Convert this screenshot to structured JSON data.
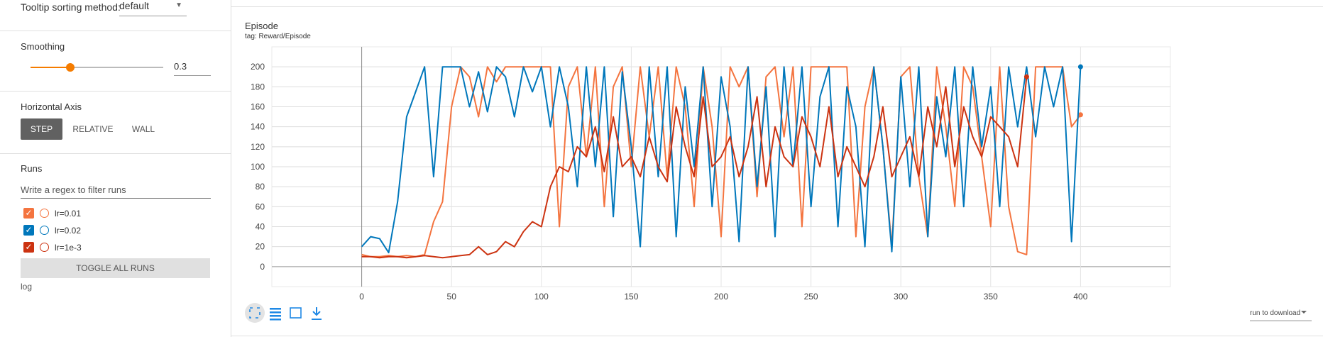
{
  "sidebar": {
    "tooltip_label": "Tooltip sorting method:",
    "tooltip_value": "default",
    "smoothing_label": "Smoothing",
    "smoothing": 0.3,
    "axis_label": "Horizontal Axis",
    "axis_buttons": [
      "STEP",
      "RELATIVE",
      "WALL"
    ],
    "runs_label": "Runs",
    "filter_placeholder": "Write a regex to filter runs",
    "toggle_button": "TOGGLE ALL RUNS",
    "log_dir": "log"
  },
  "card": {
    "download_label": "run to download"
  },
  "chart_data": {
    "type": "line",
    "title": "Episode",
    "subtitle": "tag: Reward/Episode",
    "x": [
      0,
      5,
      10,
      15,
      20,
      25,
      30,
      35,
      40,
      45,
      50,
      55,
      60,
      65,
      70,
      75,
      80,
      85,
      90,
      95,
      100,
      105,
      110,
      115,
      120,
      125,
      130,
      135,
      140,
      145,
      150,
      155,
      160,
      165,
      170,
      175,
      180,
      185,
      190,
      195,
      200,
      205,
      210,
      215,
      220,
      225,
      230,
      235,
      240,
      245,
      250,
      255,
      260,
      265,
      270,
      275,
      280,
      285,
      290,
      295,
      300,
      305,
      310,
      315,
      320,
      325,
      330,
      335,
      340,
      345,
      350,
      355,
      360,
      365,
      370,
      375,
      380,
      385,
      390,
      395,
      400
    ],
    "series": [
      {
        "name": "lr=0.01",
        "color": "#f4743f",
        "values": [
          12,
          10,
          10,
          11,
          10,
          11,
          10,
          12,
          45,
          65,
          160,
          200,
          190,
          150,
          200,
          185,
          200,
          200,
          200,
          200,
          200,
          200,
          40,
          180,
          200,
          110,
          200,
          60,
          180,
          200,
          100,
          200,
          130,
          200,
          90,
          200,
          160,
          60,
          200,
          140,
          30,
          200,
          180,
          200,
          70,
          190,
          200,
          130,
          200,
          40,
          200,
          200,
          200,
          200,
          200,
          30,
          160,
          200,
          120,
          20,
          190,
          200,
          90,
          30,
          200,
          140,
          60,
          200,
          180,
          110,
          40,
          200,
          60,
          15,
          12,
          200,
          200,
          200,
          200,
          140,
          152
        ]
      },
      {
        "name": "lr=0.02",
        "color": "#0077bb",
        "values": [
          20,
          30,
          28,
          14,
          65,
          150,
          175,
          200,
          90,
          200,
          200,
          200,
          160,
          195,
          155,
          200,
          190,
          150,
          200,
          175,
          200,
          140,
          200,
          160,
          80,
          200,
          100,
          200,
          50,
          195,
          120,
          20,
          200,
          90,
          200,
          30,
          180,
          100,
          200,
          60,
          190,
          140,
          25,
          200,
          80,
          180,
          30,
          200,
          100,
          200,
          60,
          170,
          200,
          40,
          180,
          140,
          20,
          200,
          120,
          15,
          190,
          80,
          200,
          30,
          170,
          110,
          200,
          60,
          200,
          120,
          180,
          60,
          200,
          140,
          200,
          130,
          200,
          160,
          200,
          25,
          200
        ]
      },
      {
        "name": "lr=1e-3",
        "color": "#cc3311",
        "values": [
          10,
          10,
          9,
          10,
          10,
          9,
          10,
          11,
          10,
          9,
          10,
          11,
          12,
          20,
          12,
          15,
          25,
          20,
          35,
          45,
          40,
          80,
          100,
          95,
          120,
          110,
          140,
          95,
          150,
          100,
          110,
          90,
          130,
          100,
          85,
          160,
          120,
          90,
          170,
          100,
          110,
          130,
          90,
          120,
          170,
          80,
          140,
          110,
          100,
          150,
          130,
          100,
          160,
          90,
          120,
          100,
          80,
          110,
          160,
          90,
          110,
          130,
          90,
          160,
          120,
          180,
          100,
          160,
          130,
          110,
          150,
          140,
          130,
          100,
          190,
          null,
          null,
          null,
          null,
          null,
          null
        ]
      }
    ],
    "xlim": [
      -50,
      450
    ],
    "xticks": [
      0,
      50,
      100,
      150,
      200,
      250,
      300,
      350,
      400
    ],
    "ylim": [
      -20,
      220
    ],
    "yticks": [
      0,
      20,
      40,
      60,
      80,
      100,
      120,
      140,
      160,
      180,
      200
    ],
    "grid": true
  }
}
